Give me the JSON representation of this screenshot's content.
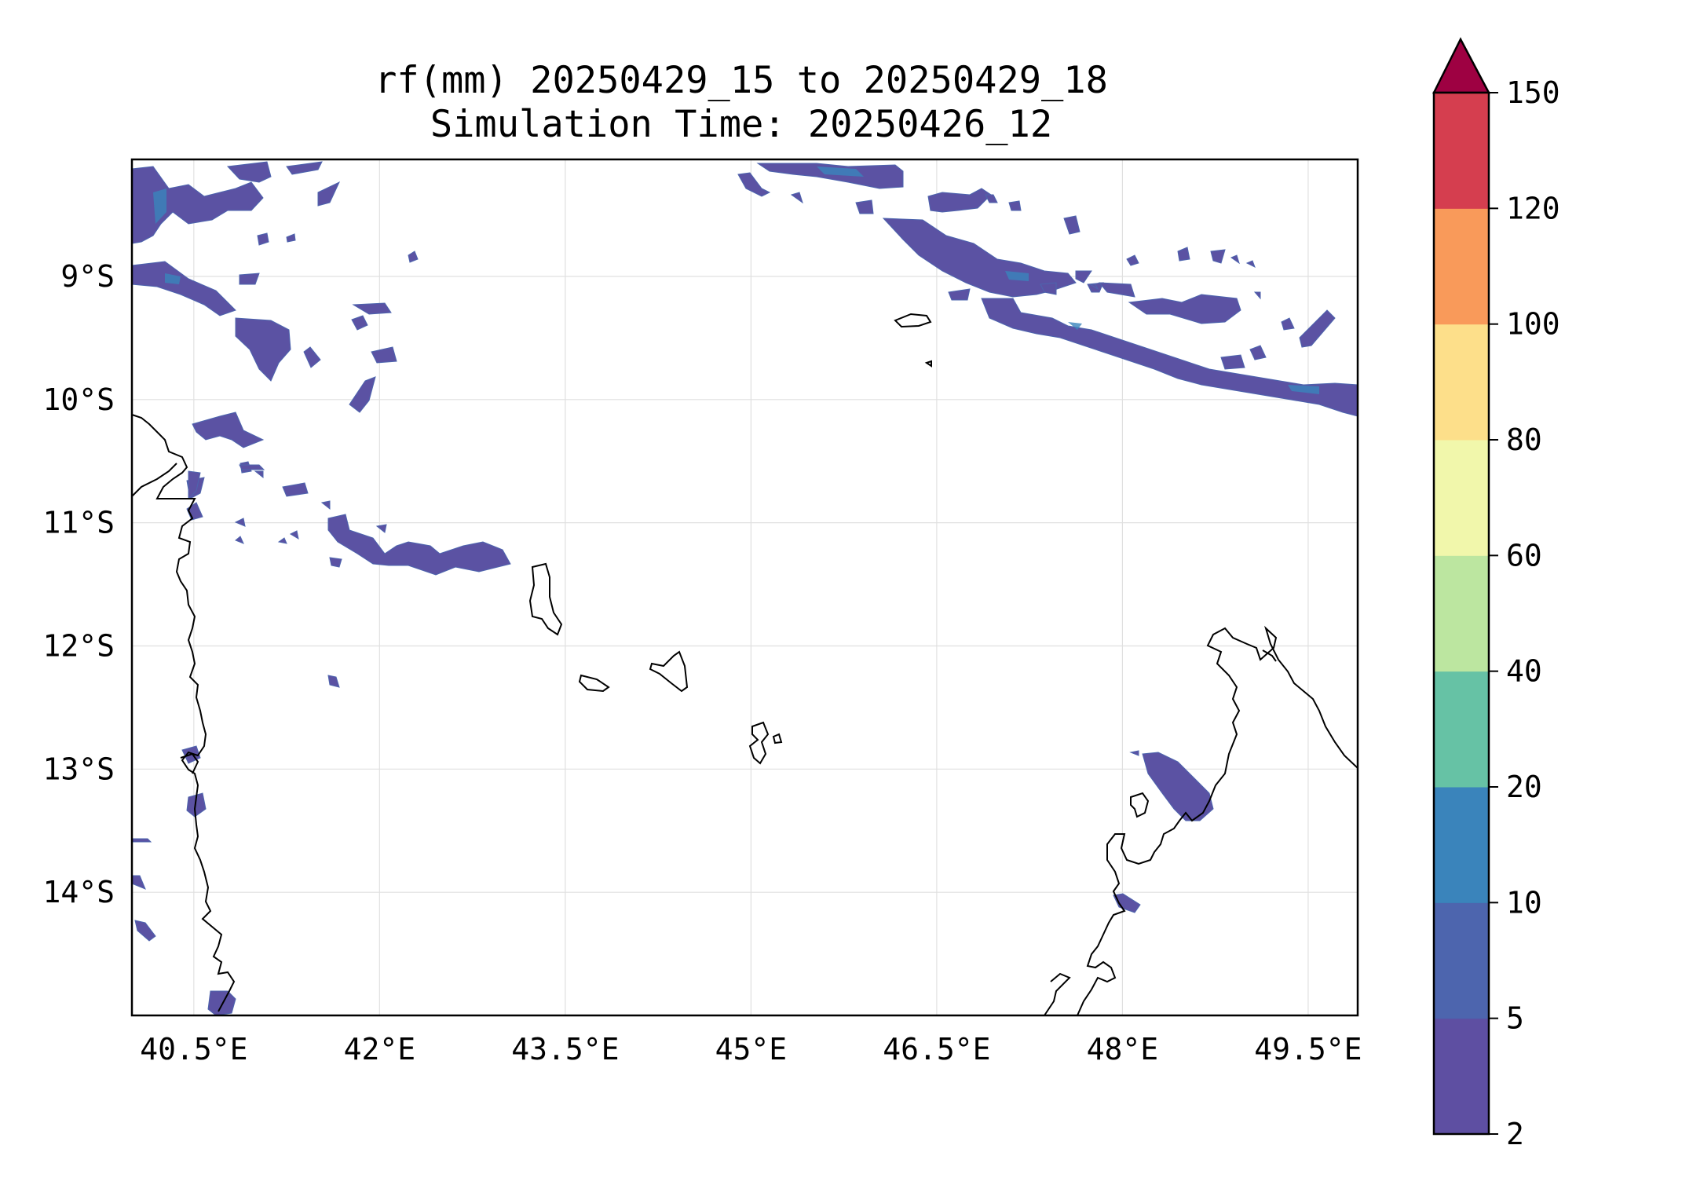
{
  "title": {
    "line1": "rf(mm) 20250429_15 to 20250429_18",
    "line2": "Simulation Time: 20250426_12"
  },
  "map": {
    "lon_range": [
      40.0,
      49.9
    ],
    "lat_range": [
      -15.0,
      -8.05
    ],
    "x_ticks": [
      "40.5°E",
      "42°E",
      "43.5°E",
      "45°E",
      "46.5°E",
      "48°E",
      "49.5°E"
    ],
    "y_ticks": [
      "9°S",
      "10°S",
      "11°S",
      "12°S",
      "13°S",
      "14°S"
    ],
    "gridlines": true
  },
  "colorbar": {
    "extend": "max",
    "levels": [
      "2",
      "5",
      "10",
      "20",
      "40",
      "60",
      "80",
      "100",
      "120",
      "150"
    ],
    "colors": [
      "#5e4fa2",
      "#4d65ae",
      "#3a84bb",
      "#66c2a5",
      "#bce6a0",
      "#f1f7ab",
      "#fddf8a",
      "#f99a5a",
      "#d53e4f",
      "#9e0142"
    ]
  },
  "chart_data": {
    "type": "heatmap",
    "variable": "rf(mm)",
    "description_visible": "Scattered light rainfall (mostly 2-10 mm) along bands in the north and northeast; coastline of Tanzania/Mozambique on left, Comoros islands in center, northern Madagascar on bottom right.",
    "colorbar_levels": [
      2,
      5,
      10,
      20,
      40,
      60,
      80,
      100,
      120,
      150
    ]
  }
}
